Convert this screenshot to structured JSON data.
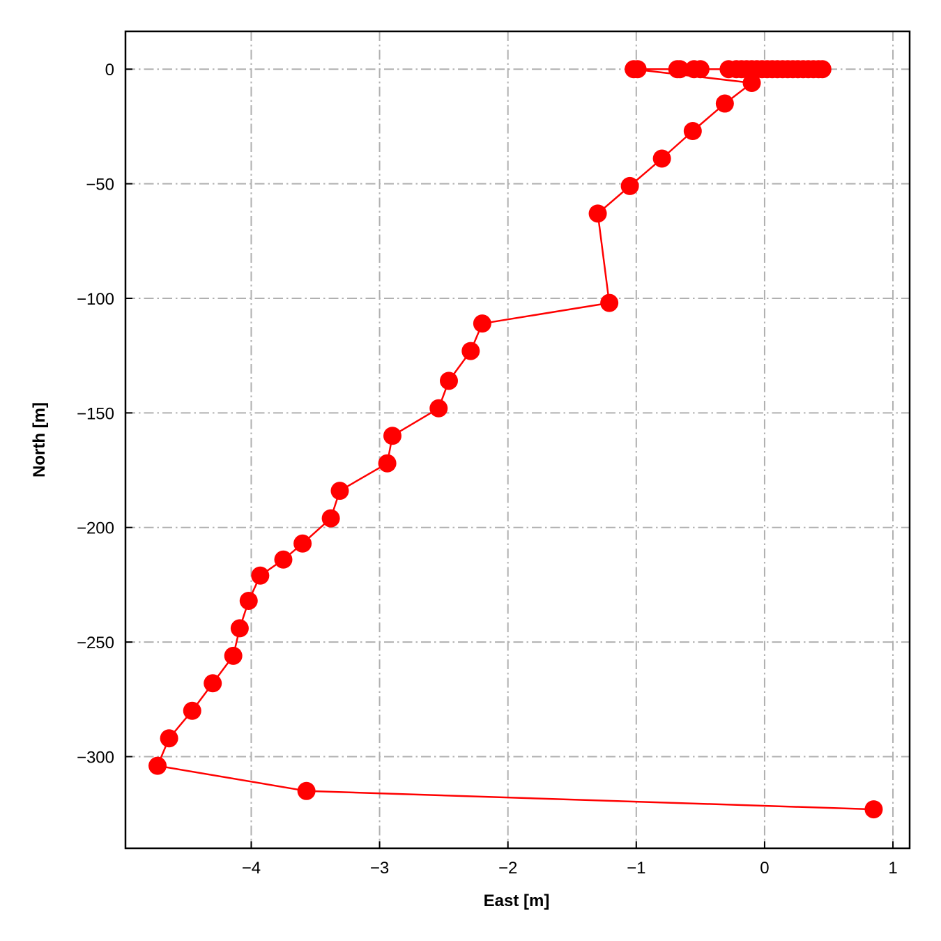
{
  "chart_data": {
    "type": "line",
    "title": "",
    "xlabel": "East [m]",
    "ylabel": "North [m]",
    "xlim": [
      -4.98,
      1.13
    ],
    "ylim": [
      -340,
      16.5
    ],
    "xticks": [
      -4,
      -3,
      -2,
      -1,
      0,
      1
    ],
    "xtick_labels": [
      "−4",
      "−3",
      "−2",
      "−1",
      "0",
      "1"
    ],
    "yticks": [
      0,
      -50,
      -100,
      -150,
      -200,
      -250,
      -300
    ],
    "ytick_labels": [
      "0",
      "−50",
      "−100",
      "−150",
      "−200",
      "−250",
      "−300"
    ],
    "grid": true,
    "grid_color": "#b0b0b0",
    "series": [
      {
        "color": "#ff0000",
        "marker": "circle",
        "x": [
          0.45,
          0.42,
          0.38,
          0.34,
          0.3,
          0.26,
          0.22,
          0.18,
          0.14,
          0.1,
          0.06,
          0.02,
          -0.02,
          -0.06,
          -0.1,
          -0.14,
          -0.18,
          -0.22,
          -0.28,
          -0.5,
          -0.55,
          -0.66,
          -0.68,
          -0.99,
          -1.02,
          -0.1,
          -0.31,
          -0.56,
          -0.8,
          -1.05,
          -1.3,
          -1.21,
          -2.2,
          -2.29,
          -2.46,
          -2.54,
          -2.9,
          -2.94,
          -3.31,
          -3.38,
          -3.6,
          -3.75,
          -3.93,
          -4.02,
          -4.09,
          -4.14,
          -4.3,
          -4.46,
          -4.64,
          -4.73,
          -3.57,
          0.85
        ],
        "y": [
          0,
          0,
          0,
          0,
          0,
          0,
          0,
          0,
          0,
          0,
          0,
          0,
          0,
          0,
          0,
          0,
          0,
          0,
          0,
          0,
          0,
          0,
          0,
          0,
          0,
          -6,
          -15,
          -27,
          -39,
          -51,
          -63,
          -102,
          -111,
          -123,
          -136,
          -148,
          -160,
          -172,
          -184,
          -196,
          -207,
          -214,
          -221,
          -232,
          -244,
          -256,
          -268,
          -280,
          -292,
          -304,
          -315,
          -323
        ]
      }
    ]
  }
}
